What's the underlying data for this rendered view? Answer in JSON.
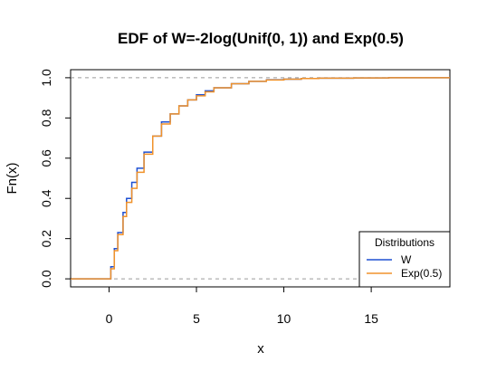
{
  "chart_data": {
    "type": "line",
    "title": "EDF of W=-2log(Unif(0, 1)) and Exp(0.5)",
    "xlabel": "x",
    "ylabel": "Fn(x)",
    "xlim": [
      -2.2,
      19.5
    ],
    "ylim": [
      -0.04,
      1.04
    ],
    "xticks": [
      0,
      5,
      10,
      15
    ],
    "yticks": [
      0.0,
      0.2,
      0.4,
      0.6,
      0.8,
      1.0
    ],
    "xtick_labels": [
      "0",
      "5",
      "10",
      "15"
    ],
    "ytick_labels": [
      "0.0",
      "0.2",
      "0.4",
      "0.6",
      "0.8",
      "1.0"
    ],
    "reference_lines": [
      0,
      1
    ],
    "legend": {
      "title": "Distributions",
      "position": "bottom-right",
      "entries": [
        "W",
        "Exp(0.5)"
      ]
    },
    "series": [
      {
        "name": "W",
        "color": "#1f50d2",
        "x": [
          -2.2,
          0.0,
          0.1,
          0.3,
          0.5,
          0.8,
          1.0,
          1.3,
          1.6,
          2.0,
          2.5,
          3.0,
          3.5,
          4.0,
          4.5,
          5.0,
          5.5,
          6.0,
          7.0,
          8.0,
          9.0,
          10.0,
          11.0,
          12.0,
          14.0,
          16.0,
          19.5
        ],
        "y": [
          0.0,
          0.0,
          0.06,
          0.15,
          0.23,
          0.33,
          0.4,
          0.48,
          0.55,
          0.63,
          0.71,
          0.78,
          0.82,
          0.86,
          0.89,
          0.915,
          0.935,
          0.95,
          0.97,
          0.982,
          0.99,
          0.993,
          0.996,
          0.998,
          0.999,
          1.0,
          1.0
        ]
      },
      {
        "name": "Exp(0.5)",
        "color": "#f0922b",
        "x": [
          -2.2,
          0.0,
          0.1,
          0.3,
          0.5,
          0.8,
          1.0,
          1.3,
          1.6,
          2.0,
          2.5,
          3.0,
          3.5,
          4.0,
          4.5,
          5.0,
          5.5,
          6.0,
          7.0,
          8.0,
          9.0,
          10.0,
          11.0,
          12.0,
          14.0,
          16.0,
          19.5
        ],
        "y": [
          0.0,
          0.0,
          0.05,
          0.14,
          0.22,
          0.31,
          0.38,
          0.45,
          0.53,
          0.62,
          0.71,
          0.77,
          0.82,
          0.86,
          0.89,
          0.91,
          0.93,
          0.95,
          0.97,
          0.982,
          0.989,
          0.993,
          0.996,
          0.998,
          0.999,
          1.0,
          1.0
        ]
      }
    ]
  }
}
